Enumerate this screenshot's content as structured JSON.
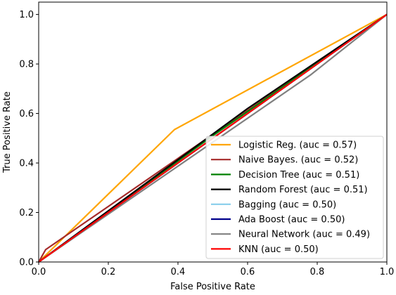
{
  "chart_data": {
    "type": "line",
    "title": "",
    "xlabel": "False Positive Rate",
    "ylabel": "True Positive Rate",
    "xlim": [
      0,
      1
    ],
    "ylim": [
      0,
      1.05
    ],
    "xticks": [
      "0.0",
      "0.2",
      "0.4",
      "0.6",
      "0.8",
      "1.0"
    ],
    "yticks": [
      "0.0",
      "0.2",
      "0.4",
      "0.6",
      "0.8",
      "1.0"
    ],
    "grid": false,
    "legend_position": "lower-right",
    "series": [
      {
        "name": "Logistic Reg. (auc = 0.57)",
        "color": "#ffa500",
        "x": [
          0,
          0.39,
          1
        ],
        "y": [
          0,
          0.535,
          1
        ]
      },
      {
        "name": "Naive Bayes. (auc = 0.52)",
        "color": "#a52a2a",
        "x": [
          0,
          0.02,
          1
        ],
        "y": [
          0,
          0.05,
          1
        ]
      },
      {
        "name": "Decision Tree (auc = 0.51)",
        "color": "#008000",
        "x": [
          0,
          0.5,
          1
        ],
        "y": [
          0,
          0.51,
          1
        ]
      },
      {
        "name": "Random Forest (auc = 0.51)",
        "color": "#000000",
        "x": [
          0,
          0.6,
          1
        ],
        "y": [
          0,
          0.62,
          1
        ]
      },
      {
        "name": "Bagging (auc = 0.50)",
        "color": "#87ceeb",
        "x": [
          0,
          1
        ],
        "y": [
          0,
          1
        ]
      },
      {
        "name": "Ada Boost (auc = 0.50)",
        "color": "#00008b",
        "x": [
          0,
          1
        ],
        "y": [
          0,
          1
        ]
      },
      {
        "name": "Neural Network (auc = 0.49)",
        "color": "#808080",
        "x": [
          0,
          0.78,
          1
        ],
        "y": [
          0,
          0.755,
          1
        ]
      },
      {
        "name": "KNN (auc = 0.50)",
        "color": "#ff0000",
        "x": [
          0,
          1
        ],
        "y": [
          0,
          1
        ]
      }
    ]
  }
}
